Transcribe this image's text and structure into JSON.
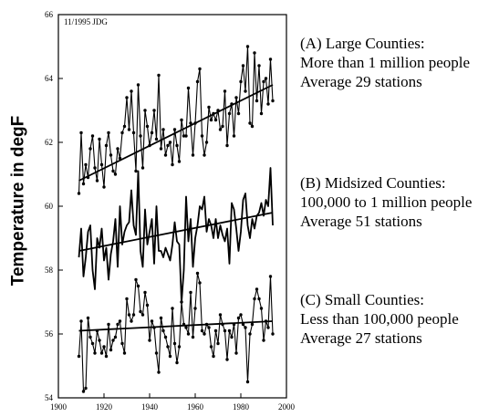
{
  "chart_data": {
    "type": "line",
    "title": "",
    "annotation": "11/1995 JDG",
    "xlabel": "",
    "ylabel": "Temperature in degF",
    "xlim": [
      1900,
      2000
    ],
    "ylim": [
      54,
      66
    ],
    "xticks": [
      1900,
      1920,
      1940,
      1960,
      1980,
      2000
    ],
    "yticks": [
      54,
      56,
      58,
      60,
      62,
      64,
      66
    ],
    "grid": false,
    "legend": "none",
    "x": [
      1909,
      1910,
      1911,
      1912,
      1913,
      1914,
      1915,
      1916,
      1917,
      1918,
      1919,
      1920,
      1921,
      1922,
      1923,
      1924,
      1925,
      1926,
      1927,
      1928,
      1929,
      1930,
      1931,
      1932,
      1933,
      1934,
      1935,
      1936,
      1937,
      1938,
      1939,
      1940,
      1941,
      1942,
      1943,
      1944,
      1945,
      1946,
      1947,
      1948,
      1949,
      1950,
      1951,
      1952,
      1953,
      1954,
      1955,
      1956,
      1957,
      1958,
      1959,
      1960,
      1961,
      1962,
      1963,
      1964,
      1965,
      1966,
      1967,
      1968,
      1969,
      1970,
      1971,
      1972,
      1973,
      1974,
      1975,
      1976,
      1977,
      1978,
      1979,
      1980,
      1981,
      1982,
      1983,
      1984,
      1985,
      1986,
      1987,
      1988,
      1989,
      1990,
      1991,
      1992,
      1993,
      1994
    ],
    "series": [
      {
        "values": [
          60.4,
          62.3,
          60.7,
          61.3,
          60.9,
          61.8,
          62.2,
          61.2,
          60.8,
          62.1,
          61.3,
          60.6,
          61.9,
          62.3,
          61.6,
          61.1,
          61.0,
          61.8,
          61.5,
          62.3,
          62.5,
          63.4,
          62.4,
          63.6,
          62.3,
          61.1,
          63.8,
          62.2,
          61.2,
          63.0,
          62.5,
          61.9,
          62.3,
          63.0,
          62.1,
          64.1,
          61.8,
          62.4,
          61.6,
          61.9,
          62.0,
          61.3,
          62.4,
          61.9,
          61.4,
          62.7,
          62.2,
          62.2,
          63.7,
          62.6,
          61.6,
          62.6,
          63.9,
          64.3,
          62.2,
          61.6,
          62.0,
          63.1,
          62.7,
          62.9,
          62.7,
          63.0,
          62.4,
          62.5,
          63.6,
          61.9,
          62.9,
          63.2,
          62.2,
          63.4,
          62.9,
          63.9,
          64.4,
          63.6,
          65.0,
          62.6,
          62.5,
          64.8,
          63.3,
          64.4,
          62.9,
          63.9,
          64.0,
          63.2,
          64.6,
          63.3
        ],
        "trend": [
          [
            1909,
            60.8
          ],
          [
            1994,
            63.8
          ]
        ]
      },
      {
        "values": [
          58.4,
          59.3,
          57.8,
          58.4,
          59.2,
          59.4,
          58.0,
          57.4,
          59.0,
          58.7,
          59.3,
          58.3,
          58.7,
          57.7,
          58.5,
          58.9,
          59.6,
          58.1,
          60.0,
          58.8,
          59.2,
          59.4,
          59.5,
          60.5,
          59.4,
          59.1,
          61.1,
          58.6,
          58.1,
          59.9,
          58.8,
          59.2,
          59.6,
          58.2,
          60.0,
          58.6,
          58.6,
          58.4,
          58.7,
          58.5,
          58.3,
          58.8,
          59.5,
          58.9,
          58.8,
          57.0,
          58.0,
          60.3,
          58.9,
          59.6,
          58.1,
          59.0,
          59.4,
          60.0,
          59.9,
          60.3,
          59.2,
          59.6,
          59.4,
          59.0,
          59.6,
          59.0,
          59.4,
          59.1,
          58.9,
          59.3,
          58.2,
          60.1,
          59.9,
          59.3,
          58.6,
          59.2,
          60.2,
          60.4,
          59.4,
          59.0,
          59.6,
          59.3,
          59.7,
          59.8,
          60.1,
          59.7,
          60.2,
          60.0,
          61.2,
          59.4
        ],
        "trend": [
          [
            1909,
            58.6
          ],
          [
            1994,
            59.8
          ]
        ]
      },
      {
        "values": [
          55.3,
          56.4,
          54.2,
          54.3,
          56.5,
          55.9,
          55.7,
          55.4,
          56.1,
          55.8,
          55.4,
          55.6,
          55.3,
          56.3,
          55.5,
          55.8,
          55.9,
          56.3,
          56.4,
          55.7,
          55.4,
          57.1,
          56.6,
          56.4,
          56.6,
          57.7,
          57.5,
          56.7,
          56.6,
          57.3,
          56.9,
          55.8,
          56.4,
          56.2,
          55.4,
          54.8,
          56.5,
          56.1,
          55.9,
          55.6,
          55.3,
          56.8,
          55.7,
          55.1,
          55.6,
          57.0,
          56.3,
          56.2,
          56.0,
          57.3,
          55.9,
          56.8,
          57.9,
          57.6,
          56.1,
          56.0,
          56.3,
          56.2,
          55.6,
          55.3,
          56.1,
          55.7,
          56.6,
          56.3,
          56.1,
          55.2,
          56.1,
          55.9,
          56.3,
          55.4,
          56.5,
          56.6,
          56.3,
          56.2,
          54.5,
          56.0,
          56.3,
          57.1,
          57.4,
          57.1,
          56.8,
          55.8,
          56.4,
          56.2,
          57.8,
          56.0
        ],
        "trend": [
          [
            1909,
            56.1
          ],
          [
            1994,
            56.4
          ]
        ]
      }
    ]
  },
  "legend_groups": [
    {
      "lines": [
        "(A) Large Counties:",
        "More than 1 million people",
        "Average 29 stations"
      ]
    },
    {
      "lines": [
        "(B) Midsized Counties:",
        "100,000 to 1 million people",
        "Average 51 stations"
      ]
    },
    {
      "lines": [
        "(C) Small Counties:",
        "Less than 100,000 people",
        "Average 27 stations"
      ]
    }
  ]
}
